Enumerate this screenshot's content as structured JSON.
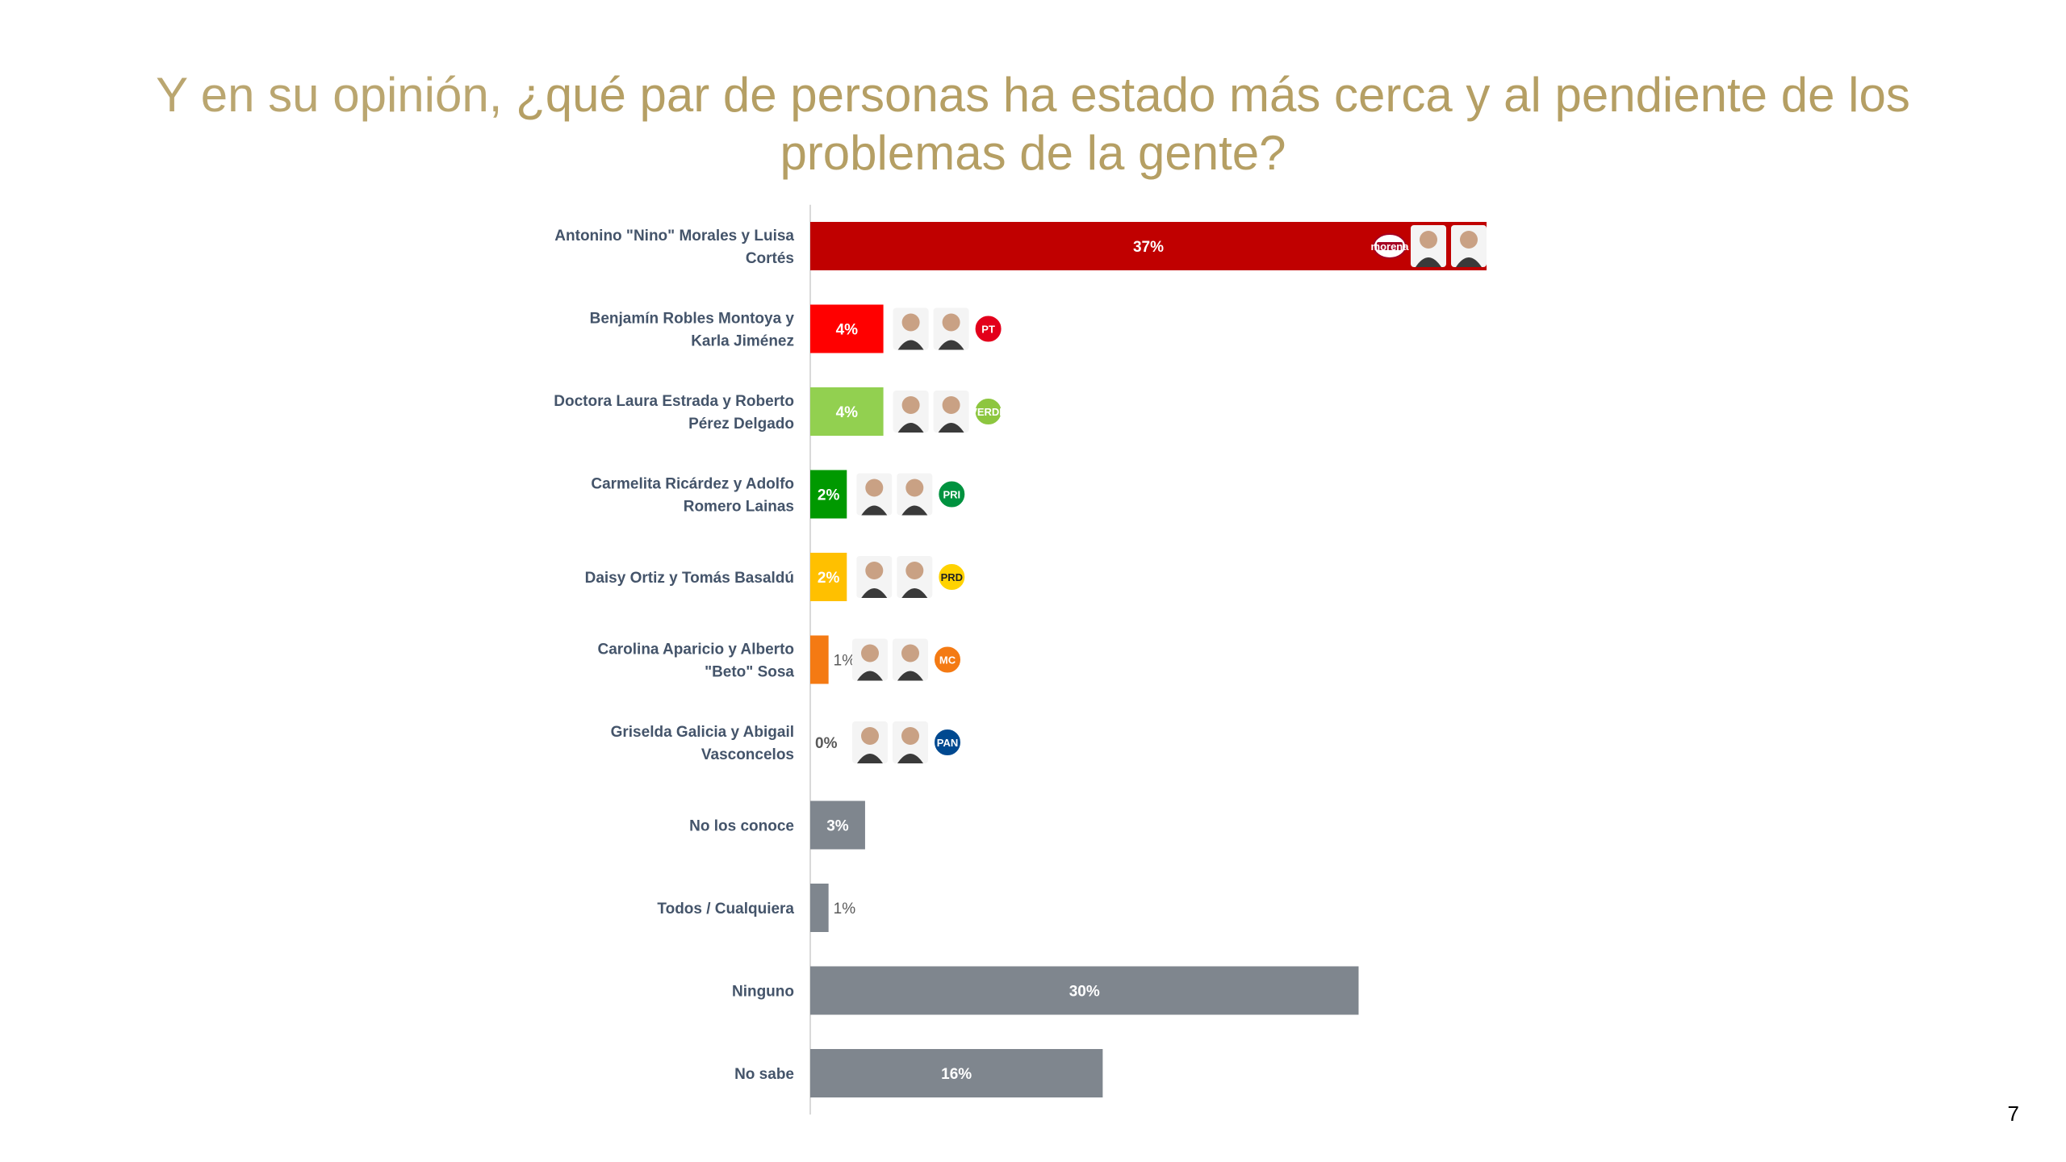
{
  "title": {
    "part1": "Y en su opinión, ",
    "part2": "¿qué par de personas ha estado más cerca y al pendiente de los problemas de la gente?"
  },
  "page_number": "7",
  "colors": {
    "title": "#b59f64",
    "labels": "#44546a",
    "axis": "#d9d9d9"
  },
  "chart_data": {
    "type": "bar",
    "orientation": "horizontal",
    "categories": [
      "Antonino \"Nino\" Morales y Luisa Cortés",
      "Benjamín Robles Montoya y Karla Jiménez",
      "Doctora Laura Estrada y Roberto Pérez Delgado",
      "Carmelita Ricárdez y Adolfo Romero Lainas",
      "Daisy Ortiz y Tomás Basaldú",
      "Carolina Aparicio y Alberto \"Beto\" Sosa",
      "Griselda Galicia y Abigail Vasconcelos",
      "No los conoce",
      "Todos / Cualquiera",
      "Ninguno",
      "No sabe"
    ],
    "label_lines": [
      [
        "Antonino \"Nino\" Morales y Luisa",
        "Cortés"
      ],
      [
        "Benjamín Robles Montoya y",
        "Karla Jiménez"
      ],
      [
        "Doctora Laura Estrada y Roberto",
        "Pérez Delgado"
      ],
      [
        "Carmelita Ricárdez y Adolfo",
        "Romero Lainas"
      ],
      [
        "Daisy Ortiz y Tomás Basaldú"
      ],
      [
        "Carolina Aparicio y Alberto",
        "\"Beto\" Sosa"
      ],
      [
        "Griselda Galicia y Abigail",
        "Vasconcelos"
      ],
      [
        "No los conoce"
      ],
      [
        "Todos / Cualquiera"
      ],
      [
        "Ninguno"
      ],
      [
        "No sabe"
      ]
    ],
    "values": [
      37,
      4,
      4,
      2,
      2,
      1,
      0,
      3,
      1,
      30,
      16
    ],
    "value_labels": [
      "37%",
      "4%",
      "4%",
      "2%",
      "2%",
      "1%",
      "0%",
      "3%",
      "1%",
      "30%",
      "16%"
    ],
    "bar_colors": [
      "#c00000",
      "#ff0000",
      "#92d050",
      "#009900",
      "#ffc000",
      "#f47a13",
      "#2f5597",
      "#7f868e",
      "#7f868e",
      "#7f868e",
      "#7f868e"
    ],
    "value_label_colors": [
      "#ffffff",
      "#ffffff",
      "#ffffff",
      "#ffffff",
      "#ffffff",
      "#595959",
      "#0070c0",
      "#ffffff",
      "#595959",
      "#ffffff",
      "#ffffff"
    ],
    "party_logos": [
      "morena",
      "PT",
      "VERDE",
      "PRI",
      "PRD",
      "MC",
      "PAN",
      "",
      "",
      "",
      ""
    ],
    "party_logo_colors": [
      "#a50021",
      "#e3001b",
      "#8dc63f",
      "#00923f",
      "#ffd200",
      "#f47a13",
      "#004990",
      "",
      "",
      "",
      ""
    ],
    "xlim": [
      0,
      37
    ],
    "grid": false,
    "legend": "none"
  }
}
